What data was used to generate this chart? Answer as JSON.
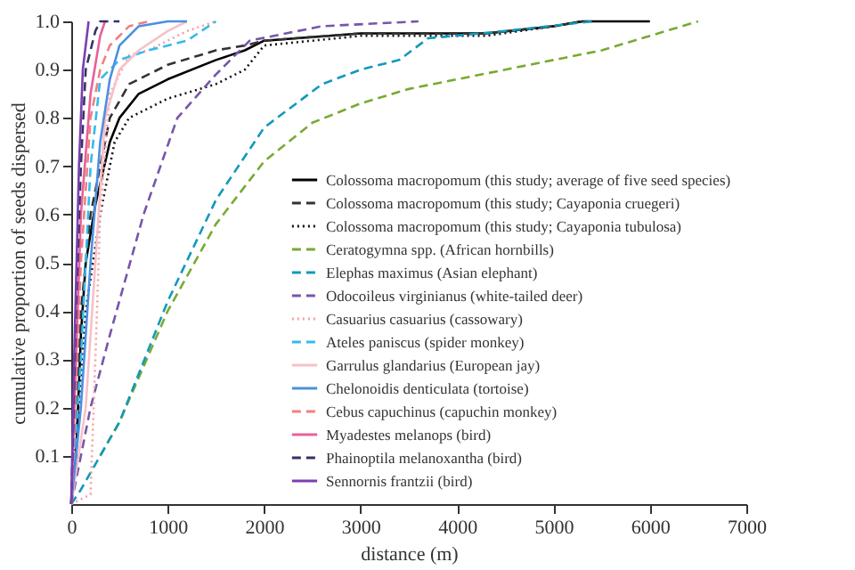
{
  "chart_data": {
    "type": "line",
    "xlabel": "distance (m)",
    "ylabel": "cumulative proportion of seeds dispersed",
    "xlim": [
      0,
      7000
    ],
    "ylim": [
      0,
      1
    ],
    "xticks": [
      0,
      1000,
      2000,
      3000,
      4000,
      5000,
      6000,
      7000
    ],
    "yticks": [
      0.1,
      0.2,
      0.3,
      0.4,
      0.5,
      0.6,
      0.7,
      0.8,
      0.9,
      {
        "value": 1,
        "label": "1.0"
      }
    ],
    "grid": false,
    "legend": "bottom right",
    "series": [
      {
        "name": "Colossoma macropomum (this study; average of five seed species)",
        "color": "#000000",
        "line_style": "solid",
        "x": [
          0,
          50,
          100,
          150,
          250,
          400,
          500,
          700,
          1000,
          1500,
          1800,
          2000,
          3000,
          4300,
          5000,
          5300,
          6000
        ],
        "values": [
          0,
          0.1,
          0.35,
          0.5,
          0.62,
          0.75,
          0.8,
          0.85,
          0.88,
          0.92,
          0.94,
          0.96,
          0.975,
          0.975,
          0.99,
          1.0,
          1.0
        ]
      },
      {
        "name": "Colossoma macropomum (this study; Cayaponia cruegeri)",
        "color": "#333333",
        "line_style": "dashed",
        "x": [
          0,
          100,
          200,
          400,
          600,
          1000,
          1500,
          1800,
          2000,
          3000,
          4300,
          5000,
          5300
        ],
        "values": [
          0,
          0.4,
          0.6,
          0.8,
          0.87,
          0.91,
          0.94,
          0.95,
          0.96,
          0.975,
          0.975,
          0.99,
          1.0
        ]
      },
      {
        "name": "Colossoma macropomum (this study; Cayaponia tubulosa)",
        "color": "#111111",
        "line_style": "dotted",
        "x": [
          0,
          150,
          300,
          450,
          600,
          1000,
          1500,
          1800,
          2000,
          3000,
          4300,
          5000,
          5300
        ],
        "values": [
          0,
          0.4,
          0.6,
          0.75,
          0.8,
          0.84,
          0.87,
          0.9,
          0.95,
          0.97,
          0.97,
          0.99,
          1.0
        ]
      },
      {
        "name": "Ceratogymna spp. (African hornbills)",
        "color": "#77aa33",
        "line_style": "dashed",
        "x": [
          300,
          500,
          1000,
          1500,
          2000,
          2500,
          3000,
          3500,
          4000,
          4500,
          5000,
          5500,
          6500
        ],
        "values": [
          0.1,
          0.17,
          0.4,
          0.58,
          0.71,
          0.79,
          0.83,
          0.86,
          0.88,
          0.9,
          0.92,
          0.94,
          1.0
        ]
      },
      {
        "name": "Elephas maximus (Asian elephant)",
        "color": "#1199bb",
        "line_style": "dashed",
        "x": [
          0,
          100,
          300,
          500,
          1000,
          1500,
          2000,
          2600,
          3000,
          3400,
          3700,
          4500,
          5400
        ],
        "values": [
          0,
          0.03,
          0.1,
          0.17,
          0.42,
          0.63,
          0.78,
          0.87,
          0.9,
          0.92,
          0.965,
          0.98,
          1.0
        ]
      },
      {
        "name": "Odocoileus virginianus (white-tailed deer)",
        "color": "#7755aa",
        "line_style": "dashed",
        "x": [
          0,
          200,
          400,
          750,
          1100,
          1500,
          1850,
          2600,
          3600
        ],
        "values": [
          0,
          0.2,
          0.35,
          0.6,
          0.8,
          0.89,
          0.96,
          0.99,
          1.0
        ]
      },
      {
        "name": "Casuarius casuarius (cassowary)",
        "color": "#f4a0a0",
        "line_style": "dotted",
        "x": [
          0,
          200,
          250,
          300,
          400,
          600,
          800,
          1000,
          1200,
          1500
        ],
        "values": [
          0,
          0.02,
          0.3,
          0.6,
          0.85,
          0.93,
          0.94,
          0.96,
          0.98,
          1.0
        ]
      },
      {
        "name": "Ateles paniscus (spider monkey)",
        "color": "#33bbee",
        "line_style": "dashed",
        "x": [
          0,
          100,
          200,
          300,
          500,
          800,
          1200,
          1500
        ],
        "values": [
          0,
          0.3,
          0.7,
          0.88,
          0.92,
          0.94,
          0.96,
          1.0
        ]
      },
      {
        "name": "Garrulus glandarius (European jay)",
        "color": "#f8c0c8",
        "line_style": "solid",
        "x": [
          0,
          150,
          250,
          350,
          500,
          700,
          1000,
          1200
        ],
        "values": [
          0,
          0.2,
          0.5,
          0.8,
          0.9,
          0.94,
          0.98,
          1.0
        ]
      },
      {
        "name": "Chelonoidis denticulata (tortoise)",
        "color": "#4a90e2",
        "line_style": "solid",
        "x": [
          0,
          100,
          200,
          300,
          400,
          500,
          700,
          1000,
          1200
        ],
        "values": [
          0,
          0.2,
          0.5,
          0.75,
          0.88,
          0.95,
          0.99,
          1.0,
          1.0
        ]
      },
      {
        "name": "Cebus capuchinus (capuchin monkey)",
        "color": "#f08080",
        "line_style": "dashed",
        "x": [
          0,
          100,
          200,
          300,
          400,
          600,
          800
        ],
        "values": [
          0,
          0.5,
          0.8,
          0.9,
          0.95,
          0.99,
          1.0
        ]
      },
      {
        "name": "Myadestes melanops (bird)",
        "color": "#e8609a",
        "line_style": "solid",
        "x": [
          0,
          50,
          100,
          200,
          300,
          350
        ],
        "values": [
          0,
          0.3,
          0.6,
          0.85,
          0.97,
          1.0
        ]
      },
      {
        "name": "Phainoptila melanoxantha (bird)",
        "color": "#333366",
        "line_style": "dashed",
        "x": [
          0,
          50,
          100,
          150,
          250,
          300,
          500
        ],
        "values": [
          0,
          0.4,
          0.7,
          0.9,
          0.98,
          1.0,
          1.0
        ]
      },
      {
        "name": "Sennornis frantzii (bird)",
        "color": "#7a3fb0",
        "line_style": "solid",
        "x": [
          0,
          30,
          80,
          120,
          180
        ],
        "values": [
          0,
          0.3,
          0.7,
          0.9,
          1.0
        ]
      }
    ]
  }
}
